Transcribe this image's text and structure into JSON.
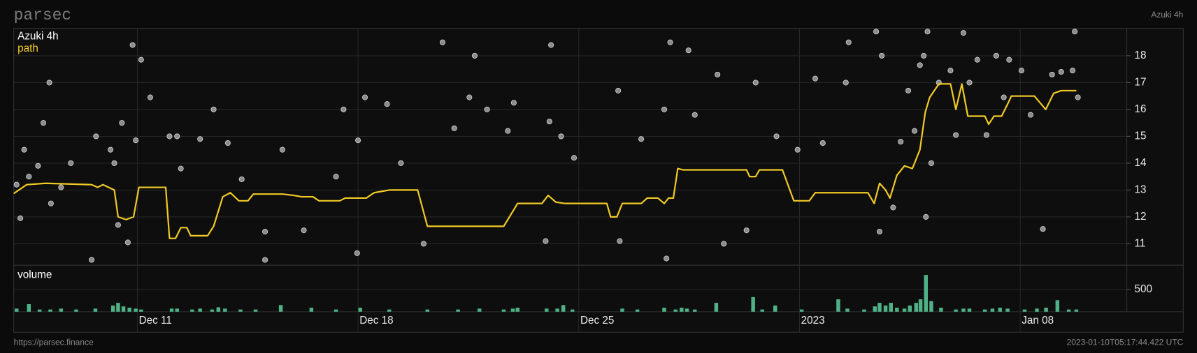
{
  "header": {
    "logo": "parsec",
    "title": "Azuki 4h"
  },
  "footer": {
    "url": "https://parsec.finance",
    "timestamp": "2023-01-10T05:17:44.422 UTC"
  },
  "chart_data": [
    {
      "type": "line",
      "title": "Azuki 4h",
      "grid": true,
      "xlim": [
        7.08,
        42.38
      ],
      "xticks": [
        {
          "value": 11,
          "label": "Dec 11"
        },
        {
          "value": 18,
          "label": "Dec 18"
        },
        {
          "value": 25,
          "label": "Dec 25"
        },
        {
          "value": 32,
          "label": "2023"
        },
        {
          "value": 39,
          "label": "Jan 08"
        }
      ],
      "ylim": [
        10.2,
        19.02
      ],
      "yticks": [
        11,
        12,
        13,
        14,
        15,
        16,
        17,
        18
      ],
      "series": [
        {
          "name": "path",
          "color": "#f2cb25",
          "x": [
            7.08,
            7.49,
            8.09,
            9.55,
            9.74,
            9.91,
            10.27,
            10.39,
            10.64,
            10.88,
            11.05,
            11.9,
            12.02,
            12.21,
            12.38,
            12.57,
            12.69,
            13.23,
            13.42,
            13.71,
            13.95,
            14.22,
            14.51,
            14.68,
            15.6,
            15.96,
            16.21,
            16.57,
            16.76,
            17.42,
            17.59,
            18.26,
            18.51,
            18.99,
            19.89,
            20.2,
            22.62,
            23.06,
            23.83,
            24.03,
            24.27,
            24.56,
            25.89,
            26.01,
            26.21,
            26.38,
            26.98,
            27.17,
            27.51,
            27.71,
            27.85,
            28.0,
            28.14,
            28.31,
            29.4,
            30.32,
            30.42,
            30.61,
            30.73,
            31.46,
            31.82,
            32.31,
            32.5,
            34.17,
            34.37,
            34.54,
            34.73,
            34.87,
            35.09,
            35.33,
            35.58,
            35.82,
            35.99,
            36.13,
            36.42,
            36.79,
            36.96,
            37.15,
            37.34,
            37.88,
            38.0,
            38.17,
            38.41,
            38.6,
            38.72,
            39.45,
            39.81,
            40.06,
            40.3,
            40.78
          ],
          "values": [
            12.87,
            13.2,
            13.25,
            13.2,
            13.1,
            13.2,
            13.0,
            12.0,
            11.9,
            12.0,
            13.1,
            13.1,
            11.2,
            11.2,
            11.6,
            11.6,
            11.3,
            11.3,
            11.65,
            12.75,
            12.9,
            12.6,
            12.6,
            12.85,
            12.85,
            12.8,
            12.75,
            12.75,
            12.6,
            12.6,
            12.7,
            12.7,
            12.9,
            13.0,
            13.0,
            11.65,
            11.65,
            12.5,
            12.5,
            12.8,
            12.55,
            12.5,
            12.5,
            12.0,
            12.0,
            12.5,
            12.5,
            12.7,
            12.7,
            12.5,
            12.7,
            12.7,
            13.8,
            13.75,
            13.75,
            13.75,
            13.5,
            13.5,
            13.75,
            13.75,
            12.6,
            12.6,
            12.9,
            12.9,
            12.5,
            13.25,
            13.0,
            12.7,
            13.55,
            13.9,
            13.8,
            14.5,
            15.9,
            16.45,
            16.95,
            16.95,
            16.0,
            16.95,
            15.75,
            15.75,
            15.45,
            15.75,
            15.75,
            16.2,
            16.5,
            16.5,
            16.0,
            16.6,
            16.7,
            16.7
          ]
        }
      ],
      "points": {
        "color": "#a0a0a0",
        "x": [
          7.17,
          7.29,
          7.41,
          7.56,
          7.85,
          8.02,
          8.21,
          8.26,
          8.58,
          8.89,
          9.55,
          9.69,
          10.15,
          10.27,
          10.39,
          10.51,
          10.7,
          10.85,
          10.95,
          11.12,
          11.41,
          12.02,
          12.26,
          12.38,
          12.99,
          13.42,
          13.87,
          14.31,
          15.05,
          15.05,
          15.6,
          16.28,
          17.3,
          17.54,
          17.97,
          18.0,
          18.22,
          18.92,
          19.36,
          20.08,
          20.68,
          21.05,
          21.53,
          21.7,
          22.09,
          22.75,
          22.94,
          23.95,
          24.07,
          24.12,
          24.44,
          24.85,
          26.25,
          26.3,
          26.98,
          27.71,
          27.78,
          27.9,
          28.48,
          28.68,
          29.4,
          29.6,
          30.32,
          30.61,
          31.27,
          31.94,
          32.5,
          32.74,
          33.47,
          33.56,
          34.43,
          34.54,
          34.61,
          34.97,
          35.21,
          35.45,
          35.65,
          35.82,
          35.94,
          36.01,
          36.06,
          36.18,
          36.42,
          36.79,
          36.96,
          37.2,
          37.39,
          37.64,
          37.93,
          38.24,
          38.48,
          38.65,
          39.04,
          39.33,
          39.72,
          40.01,
          40.3,
          40.66,
          40.73,
          40.83
        ],
        "values": [
          13.2,
          11.95,
          14.5,
          13.5,
          13.9,
          15.5,
          17.0,
          12.5,
          13.1,
          14.0,
          10.4,
          15.0,
          14.5,
          14.0,
          11.7,
          15.5,
          11.05,
          18.4,
          14.85,
          17.85,
          16.45,
          15.0,
          15.0,
          13.8,
          14.9,
          16.0,
          14.75,
          13.4,
          11.45,
          10.4,
          14.5,
          11.5,
          13.5,
          16.0,
          10.65,
          14.85,
          16.45,
          16.2,
          14.0,
          11.0,
          18.5,
          15.3,
          16.45,
          18.0,
          16.0,
          15.2,
          16.25,
          11.1,
          15.55,
          18.4,
          15.0,
          14.2,
          16.7,
          11.1,
          14.9,
          16.0,
          10.45,
          18.5,
          18.2,
          15.8,
          17.3,
          11.0,
          11.5,
          17.0,
          15.0,
          14.5,
          17.15,
          14.75,
          17.0,
          18.5,
          18.9,
          11.45,
          18.0,
          12.35,
          14.8,
          16.7,
          15.2,
          17.65,
          18.0,
          12.0,
          18.9,
          14.0,
          17.0,
          17.45,
          15.05,
          18.85,
          17.0,
          17.85,
          15.05,
          18.0,
          16.45,
          17.85,
          17.45,
          15.8,
          11.55,
          17.3,
          17.4,
          17.45,
          18.9,
          16.45
        ]
      }
    },
    {
      "type": "bar",
      "title": "volume",
      "color": "#4fb286",
      "xlim": [
        7.08,
        42.38
      ],
      "ylim": [
        0,
        1050
      ],
      "yticks": [
        500
      ],
      "x": [
        7.17,
        7.56,
        7.9,
        8.24,
        8.58,
        9.06,
        9.67,
        10.23,
        10.39,
        10.56,
        10.75,
        10.95,
        11.12,
        12.09,
        12.26,
        12.74,
        12.99,
        13.37,
        13.57,
        13.78,
        14.27,
        14.75,
        15.55,
        16.52,
        17.3,
        18.07,
        18.99,
        20.2,
        21.17,
        21.85,
        22.62,
        22.91,
        23.06,
        23.98,
        24.32,
        24.51,
        24.8,
        26.38,
        26.86,
        27.71,
        28.07,
        28.26,
        28.43,
        28.68,
        29.36,
        30.53,
        30.82,
        31.23,
        32.07,
        33.23,
        33.52,
        34.05,
        34.39,
        34.54,
        34.73,
        34.9,
        35.09,
        35.33,
        35.5,
        35.7,
        35.84,
        36.01,
        36.18,
        36.49,
        36.96,
        37.2,
        37.39,
        37.88,
        38.12,
        38.36,
        38.6,
        39.14,
        39.53,
        39.82,
        40.18,
        40.54,
        40.78
      ],
      "values": [
        70,
        170,
        50,
        50,
        70,
        50,
        70,
        140,
        200,
        120,
        90,
        70,
        50,
        70,
        70,
        50,
        70,
        50,
        100,
        70,
        50,
        50,
        150,
        90,
        50,
        90,
        50,
        50,
        50,
        70,
        50,
        70,
        90,
        70,
        70,
        150,
        50,
        70,
        50,
        90,
        50,
        90,
        70,
        50,
        200,
        330,
        50,
        140,
        50,
        280,
        70,
        50,
        120,
        200,
        140,
        200,
        90,
        70,
        140,
        200,
        280,
        830,
        240,
        90,
        50,
        70,
        70,
        50,
        70,
        90,
        70,
        50,
        70,
        90,
        260,
        50,
        50
      ]
    }
  ]
}
